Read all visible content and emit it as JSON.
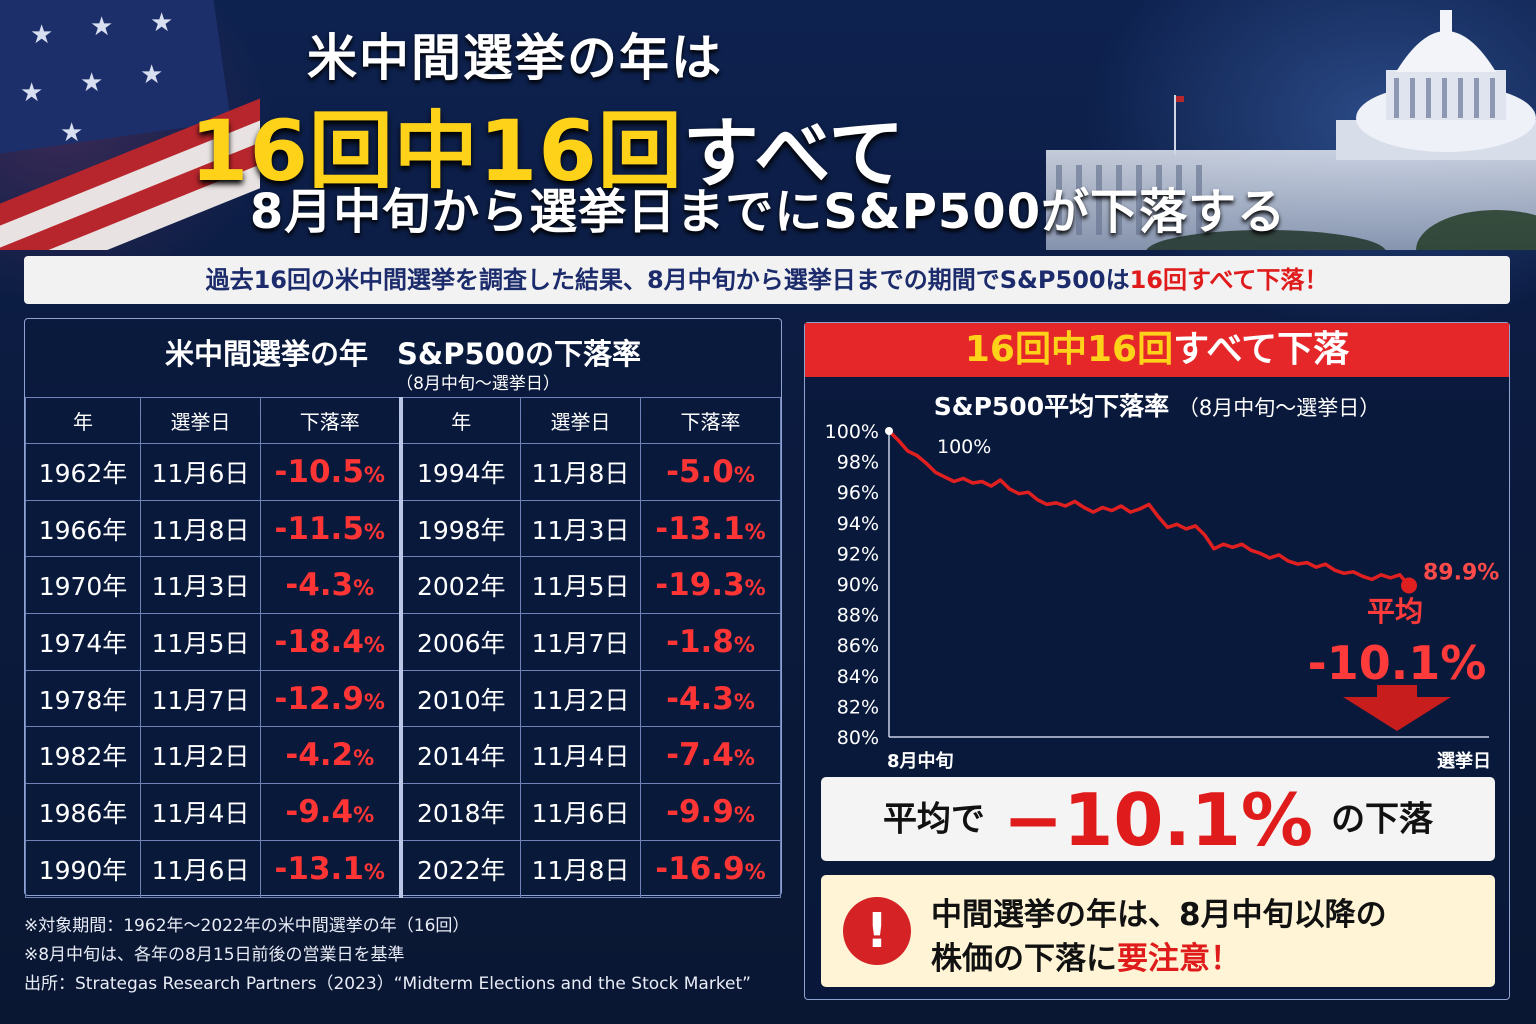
{
  "header": {
    "line1": "米中間選挙の年は",
    "line2_highlight": "16回中16回",
    "line2_rest": "すべて",
    "line3": "8月中旬から選挙日までにS&P500が下落する"
  },
  "banner": {
    "text": "過去16回の米中間選挙を調査した結果、8月中旬から選挙日までの期間でS&P500は",
    "highlight": "16回すべて下落！"
  },
  "table": {
    "title": "米中間選挙の年　S&P500の下落率",
    "subtitle": "（8月中旬～選挙日）",
    "headers": [
      "年",
      "選挙日",
      "下落率",
      "年",
      "選挙日",
      "下落率"
    ],
    "percent_sign": "%",
    "rows": [
      {
        "y1": "1962年",
        "d1": "11月6日",
        "r1": "-10.5",
        "y2": "1994年",
        "d2": "11月8日",
        "r2": "-5.0"
      },
      {
        "y1": "1966年",
        "d1": "11月8日",
        "r1": "-11.5",
        "y2": "1998年",
        "d2": "11月3日",
        "r2": "-13.1"
      },
      {
        "y1": "1970年",
        "d1": "11月3日",
        "r1": "-4.3",
        "y2": "2002年",
        "d2": "11月5日",
        "r2": "-19.3"
      },
      {
        "y1": "1974年",
        "d1": "11月5日",
        "r1": "-18.4",
        "y2": "2006年",
        "d2": "11月7日",
        "r2": "-1.8"
      },
      {
        "y1": "1978年",
        "d1": "11月7日",
        "r1": "-12.9",
        "y2": "2010年",
        "d2": "11月2日",
        "r2": "-4.3"
      },
      {
        "y1": "1982年",
        "d1": "11月2日",
        "r1": "-4.2",
        "y2": "2014年",
        "d2": "11月4日",
        "r2": "-7.4"
      },
      {
        "y1": "1986年",
        "d1": "11月4日",
        "r1": "-9.4",
        "y2": "2018年",
        "d2": "11月6日",
        "r2": "-9.9"
      },
      {
        "y1": "1990年",
        "d1": "11月6日",
        "r1": "-13.1",
        "y2": "2022年",
        "d2": "11月8日",
        "r2": "-16.9"
      }
    ]
  },
  "notes": [
    "※対象期間：1962年～2022年の米中間選挙の年（16回）",
    "※8月中旬は、各年の8月15日前後の営業日を基準",
    "出所：Strategas Research Partners（2023）“Midterm Elections and the Stock Market”"
  ],
  "chart_panel": {
    "header_highlight": "16回中16回",
    "header_rest": "すべて下落",
    "title": "S&P500平均下落率",
    "title_sub": "（8月中旬～選挙日）",
    "start_label": "100%",
    "end_label": "89.9%",
    "avg_word": "平均",
    "avg_value": "-10.1%",
    "avg_box_pre": "平均で",
    "avg_box_value": "−10.1%",
    "avg_box_post": "の下落",
    "warn_line1": "中間選挙の年は、8月中旬以降の",
    "warn_line2_pre": "株価の下落に",
    "warn_line2_red": "要注意！",
    "warn_icon": "!"
  },
  "colors": {
    "accent_red": "#e5272a",
    "line_red": "#e02020",
    "highlight_yellow": "#ffd21a",
    "navy": "#0b1a3d"
  },
  "chart_data": {
    "type": "line",
    "title": "S&P500平均下落率",
    "subtitle": "（8月中旬～選挙日）",
    "xlabel": "",
    "ylabel": "",
    "x_ticks": [
      "8月中旬",
      "選挙日"
    ],
    "y_ticks": [
      "100%",
      "98%",
      "96%",
      "94%",
      "92%",
      "90%",
      "88%",
      "86%",
      "84%",
      "82%",
      "80%"
    ],
    "ylim": [
      80,
      100
    ],
    "grid": false,
    "series": [
      {
        "values": [
          100,
          99.4,
          98.7,
          98.4,
          97.9,
          97.3,
          97.0,
          96.7,
          96.9,
          96.6,
          96.7,
          96.4,
          96.8,
          96.2,
          95.9,
          96.0,
          95.5,
          95.2,
          95.3,
          95.1,
          95.4,
          95.0,
          94.7,
          95.0,
          94.8,
          95.1,
          94.7,
          94.9,
          95.2,
          94.4,
          93.7,
          93.9,
          93.6,
          93.8,
          93.2,
          92.3,
          92.6,
          92.4,
          92.6,
          92.2,
          92.0,
          91.7,
          91.9,
          91.5,
          91.3,
          91.4,
          91.1,
          91.3,
          90.9,
          90.7,
          90.8,
          90.5,
          90.3,
          90.6,
          90.4,
          90.6,
          89.9
        ]
      }
    ],
    "annotations": [
      "100%",
      "89.9%",
      "平均",
      "-10.1%"
    ]
  }
}
